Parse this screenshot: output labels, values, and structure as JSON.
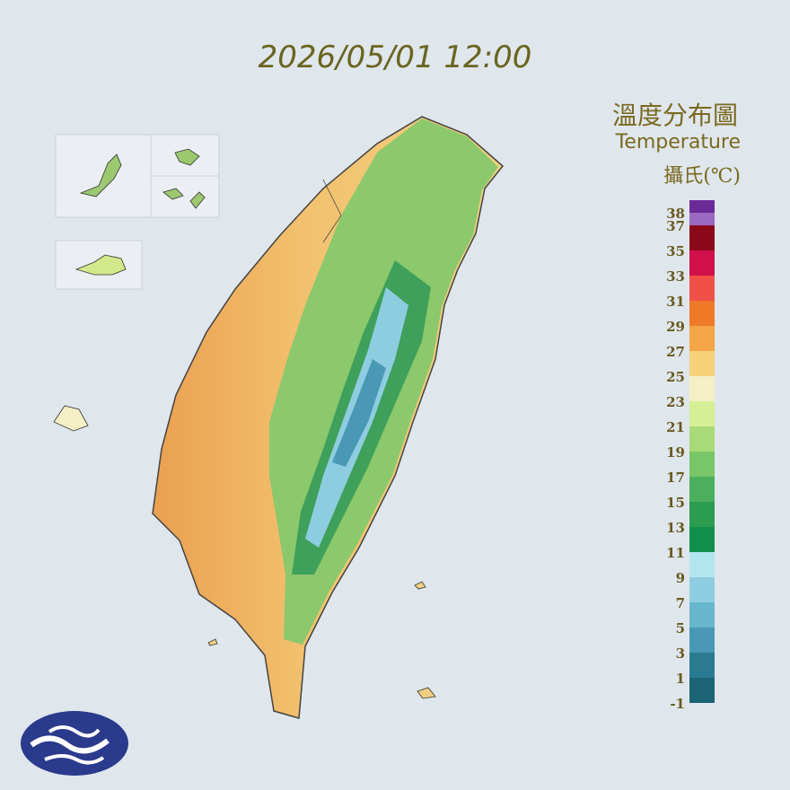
{
  "header": {
    "title": "2026/05/01 12:00"
  },
  "legend": {
    "title": "溫度分布圖",
    "subtitle": "Temperature",
    "unit": "攝氏(℃)",
    "ticks": [
      38,
      37,
      35,
      33,
      31,
      29,
      27,
      25,
      23,
      21,
      19,
      17,
      15,
      13,
      11,
      9,
      7,
      5,
      3,
      1,
      -1
    ],
    "colors": [
      "#6a2a98",
      "#9a6ac0",
      "#8b0a1a",
      "#d0104a",
      "#f05048",
      "#ee7a28",
      "#f3a548",
      "#f7d27a",
      "#f4efc4",
      "#d6ee94",
      "#a8da78",
      "#78c668",
      "#4caf5e",
      "#2c9c50",
      "#10904a",
      "#b2e6ee",
      "#8ecde0",
      "#68b6ce",
      "#4898b6",
      "#2a7a92",
      "#1a6474"
    ]
  }
}
